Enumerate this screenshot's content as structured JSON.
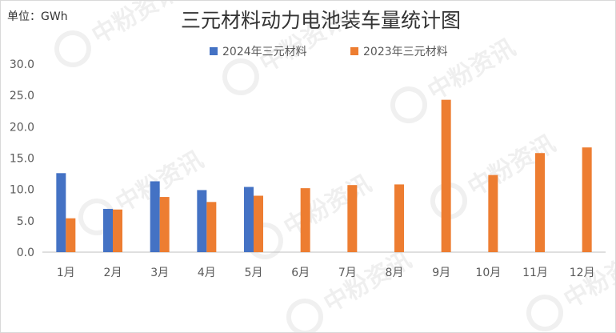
{
  "chart_data": {
    "type": "bar",
    "title": "三元材料动力电池装车量统计图",
    "unit_label": "单位：GWh",
    "categories": [
      "1月",
      "2月",
      "3月",
      "4月",
      "5月",
      "6月",
      "7月",
      "8月",
      "9月",
      "10月",
      "11月",
      "12月"
    ],
    "series": [
      {
        "name": "2024年三元材料",
        "color": "#4472c4",
        "values": [
          12.6,
          6.9,
          11.3,
          9.9,
          10.4,
          null,
          null,
          null,
          null,
          null,
          null,
          null
        ]
      },
      {
        "name": "2023年三元材料",
        "color": "#ed7d31",
        "values": [
          5.4,
          6.8,
          8.8,
          8.0,
          9.0,
          10.2,
          10.7,
          10.8,
          24.3,
          12.3,
          15.8,
          16.7
        ]
      }
    ],
    "ylim": [
      0,
      30
    ],
    "yticks": [
      "0.0",
      "5.0",
      "10.0",
      "15.0",
      "20.0",
      "25.0",
      "30.0"
    ],
    "grid": false,
    "legend_position": "top-center"
  },
  "watermark": {
    "text": "中粉资讯",
    "color": "#000000"
  }
}
